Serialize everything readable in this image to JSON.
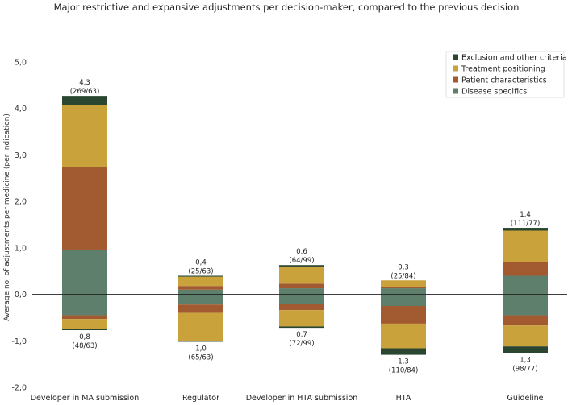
{
  "chart_data": {
    "type": "bar",
    "stacked": true,
    "title": "Major restrictive and expansive adjustments per decision-maker, compared to the previous decision",
    "xlabel": "",
    "ylabel": "Average no. of adjustments per medicine (per indication)",
    "ylim": [
      -2.0,
      5.0
    ],
    "yticks": [
      "-2,0",
      "-1,0",
      "0,0",
      "1,0",
      "2,0",
      "3,0",
      "4,0",
      "5,0"
    ],
    "ytick_values": [
      -2,
      -1,
      0,
      1,
      2,
      3,
      4,
      5
    ],
    "categories": [
      "Developer in MA submission",
      "Regulator",
      "Developer in HTA submission",
      "HTA",
      "Guideline"
    ],
    "series": [
      {
        "name": "Disease specifics",
        "color": "#5f7f6d",
        "positive": [
          0.95,
          0.1,
          0.13,
          0.13,
          0.4
        ],
        "negative": [
          -0.45,
          -0.22,
          -0.2,
          -0.25,
          -0.45
        ]
      },
      {
        "name": "Patient characteristics",
        "color": "#a25a30",
        "positive": [
          1.78,
          0.08,
          0.1,
          0.02,
          0.3
        ],
        "negative": [
          -0.08,
          -0.18,
          -0.14,
          -0.38,
          -0.22
        ]
      },
      {
        "name": "Treatment positioning",
        "color": "#c9a23c",
        "positive": [
          1.34,
          0.2,
          0.37,
          0.15,
          0.67
        ],
        "negative": [
          -0.22,
          -0.6,
          -0.35,
          -0.53,
          -0.45
        ]
      },
      {
        "name": "Exclusion and other criteria",
        "color": "#2a4530",
        "positive": [
          0.2,
          0.02,
          0.03,
          0.0,
          0.06
        ],
        "negative": [
          -0.02,
          -0.02,
          -0.03,
          -0.14,
          -0.14
        ]
      }
    ],
    "labels_positive": [
      {
        "value": "4,3",
        "detail": "(269/63)"
      },
      {
        "value": "0,4",
        "detail": "(25/63)"
      },
      {
        "value": "0,6",
        "detail": "(64/99)"
      },
      {
        "value": "0,3",
        "detail": "(25/84)"
      },
      {
        "value": "1,4",
        "detail": "(111/77)"
      }
    ],
    "labels_negative": [
      {
        "value": "0,8",
        "detail": "(48/63)"
      },
      {
        "value": "1,0",
        "detail": "(65/63)"
      },
      {
        "value": "0,7",
        "detail": "(72/99)"
      },
      {
        "value": "1,3",
        "detail": "(110/84)"
      },
      {
        "value": "1,3",
        "detail": "(98/77)"
      }
    ],
    "legend": {
      "position": "top-right",
      "entries": [
        "Exclusion and other criteria",
        "Treatment positioning",
        "Patient characteristics",
        "Disease specifics"
      ]
    },
    "grid": false
  }
}
